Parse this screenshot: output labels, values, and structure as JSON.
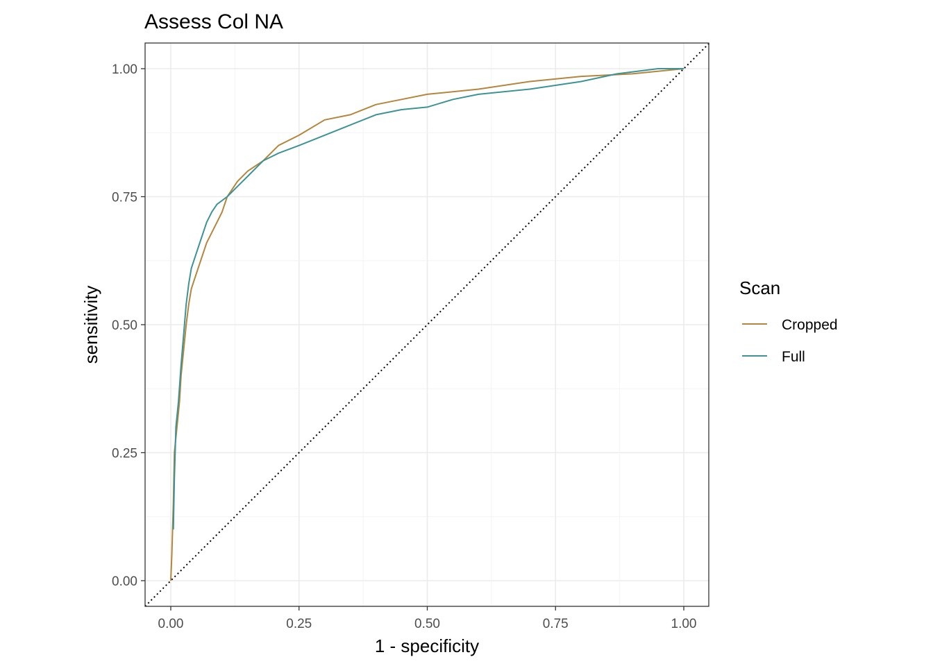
{
  "chart_data": {
    "type": "line",
    "title": "Assess Col NA",
    "xlabel": "1 - specificity",
    "ylabel": "sensitivity",
    "xlim": [
      0,
      1
    ],
    "ylim": [
      0,
      1
    ],
    "x_ticks": [
      "0.00",
      "0.25",
      "0.50",
      "0.75",
      "1.00"
    ],
    "y_ticks": [
      "0.00",
      "0.25",
      "0.50",
      "0.75",
      "1.00"
    ],
    "grid": true,
    "legend": {
      "title": "Scan",
      "position": "right",
      "entries": [
        "Cropped",
        "Full"
      ]
    },
    "reference_line": {
      "style": "dotted",
      "from": [
        0,
        0
      ],
      "to": [
        1,
        1
      ]
    },
    "series": [
      {
        "name": "Cropped",
        "color": "#b5853b",
        "points": [
          [
            0,
            0
          ],
          [
            0.002,
            0.05
          ],
          [
            0.005,
            0.15
          ],
          [
            0.007,
            0.25
          ],
          [
            0.012,
            0.3
          ],
          [
            0.017,
            0.35
          ],
          [
            0.02,
            0.4
          ],
          [
            0.025,
            0.45
          ],
          [
            0.03,
            0.5
          ],
          [
            0.035,
            0.54
          ],
          [
            0.04,
            0.57
          ],
          [
            0.05,
            0.6
          ],
          [
            0.06,
            0.63
          ],
          [
            0.07,
            0.66
          ],
          [
            0.08,
            0.68
          ],
          [
            0.09,
            0.7
          ],
          [
            0.1,
            0.72
          ],
          [
            0.11,
            0.75
          ],
          [
            0.13,
            0.78
          ],
          [
            0.15,
            0.8
          ],
          [
            0.18,
            0.82
          ],
          [
            0.21,
            0.85
          ],
          [
            0.25,
            0.87
          ],
          [
            0.3,
            0.9
          ],
          [
            0.35,
            0.91
          ],
          [
            0.4,
            0.93
          ],
          [
            0.45,
            0.94
          ],
          [
            0.5,
            0.95
          ],
          [
            0.6,
            0.96
          ],
          [
            0.7,
            0.975
          ],
          [
            0.8,
            0.985
          ],
          [
            0.9,
            0.99
          ],
          [
            1,
            1
          ]
        ]
      },
      {
        "name": "Full",
        "color": "#3c9396",
        "points": [
          [
            0.005,
            0.1
          ],
          [
            0.007,
            0.2
          ],
          [
            0.01,
            0.3
          ],
          [
            0.015,
            0.35
          ],
          [
            0.02,
            0.42
          ],
          [
            0.025,
            0.48
          ],
          [
            0.03,
            0.54
          ],
          [
            0.035,
            0.58
          ],
          [
            0.04,
            0.61
          ],
          [
            0.05,
            0.64
          ],
          [
            0.06,
            0.67
          ],
          [
            0.07,
            0.7
          ],
          [
            0.08,
            0.72
          ],
          [
            0.09,
            0.735
          ],
          [
            0.11,
            0.75
          ],
          [
            0.13,
            0.77
          ],
          [
            0.15,
            0.79
          ],
          [
            0.18,
            0.82
          ],
          [
            0.21,
            0.835
          ],
          [
            0.25,
            0.85
          ],
          [
            0.3,
            0.87
          ],
          [
            0.35,
            0.89
          ],
          [
            0.4,
            0.91
          ],
          [
            0.45,
            0.92
          ],
          [
            0.5,
            0.925
          ],
          [
            0.55,
            0.94
          ],
          [
            0.6,
            0.95
          ],
          [
            0.7,
            0.96
          ],
          [
            0.8,
            0.975
          ],
          [
            0.87,
            0.99
          ],
          [
            0.95,
            1.0
          ],
          [
            1,
            1
          ]
        ]
      }
    ]
  }
}
